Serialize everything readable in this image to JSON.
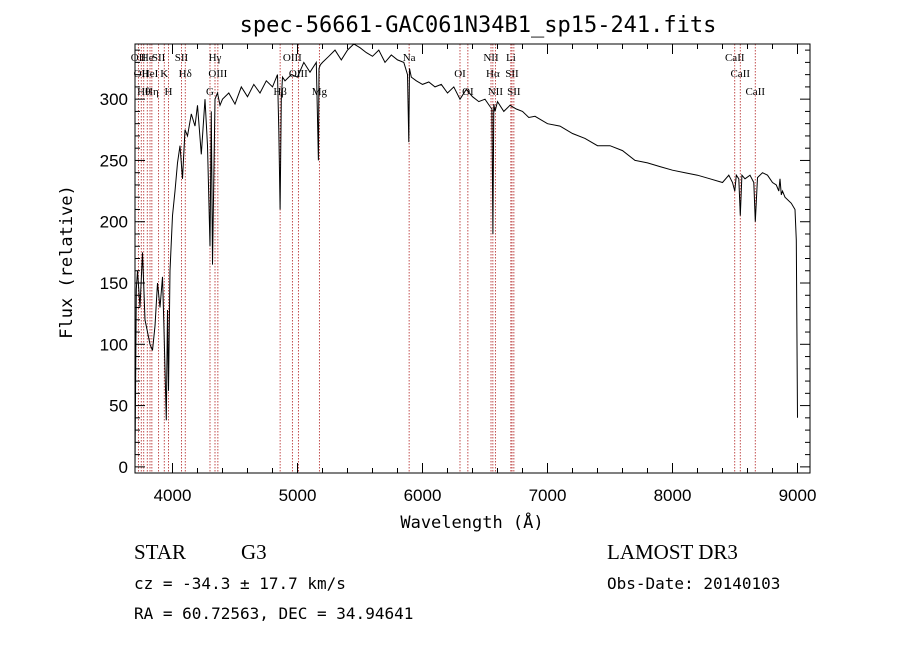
{
  "chart_data": {
    "type": "line",
    "title": "spec-56661-GAC061N34B1_sp15-241.fits",
    "xlabel": "Wavelength (Å)",
    "ylabel": "Flux (relative)",
    "xlim": [
      3700,
      9100
    ],
    "ylim": [
      -5,
      345
    ],
    "xticks": [
      4000,
      5000,
      6000,
      7000,
      8000,
      9000
    ],
    "yticks": [
      0,
      50,
      100,
      150,
      200,
      250,
      300
    ],
    "series": [
      {
        "name": "flux",
        "x": [
          3700,
          3710,
          3720,
          3740,
          3760,
          3780,
          3800,
          3820,
          3840,
          3860,
          3880,
          3900,
          3920,
          3930,
          3950,
          3960,
          3968,
          3980,
          4000,
          4020,
          4040,
          4060,
          4080,
          4100,
          4120,
          4150,
          4180,
          4200,
          4230,
          4260,
          4280,
          4300,
          4310,
          4320,
          4340,
          4360,
          4380,
          4400,
          4450,
          4500,
          4550,
          4600,
          4650,
          4700,
          4750,
          4800,
          4840,
          4850,
          4861,
          4870,
          4880,
          4900,
          4950,
          5000,
          5050,
          5100,
          5150,
          5167,
          5172,
          5183,
          5200,
          5250,
          5300,
          5350,
          5400,
          5450,
          5500,
          5550,
          5600,
          5650,
          5700,
          5750,
          5800,
          5850,
          5880,
          5890,
          5896,
          5910,
          5950,
          6000,
          6050,
          6100,
          6150,
          6200,
          6250,
          6300,
          6350,
          6400,
          6450,
          6500,
          6540,
          6555,
          6563,
          6570,
          6580,
          6600,
          6650,
          6700,
          6750,
          6800,
          6850,
          6900,
          7000,
          7100,
          7200,
          7300,
          7400,
          7500,
          7600,
          7700,
          7800,
          7900,
          8000,
          8100,
          8200,
          8300,
          8400,
          8450,
          8480,
          8498,
          8510,
          8530,
          8542,
          8555,
          8580,
          8620,
          8650,
          8662,
          8680,
          8720,
          8760,
          8800,
          8830,
          8850,
          8860,
          8870,
          8880,
          8900,
          8950,
          8980,
          8990,
          9000
        ],
        "values": [
          0,
          145,
          160,
          130,
          175,
          120,
          110,
          100,
          95,
          115,
          150,
          130,
          155,
          118,
          38,
          128,
          62,
          160,
          205,
          225,
          248,
          262,
          235,
          275,
          270,
          288,
          278,
          295,
          255,
          300,
          262,
          180,
          290,
          165,
          300,
          305,
          295,
          300,
          305,
          296,
          310,
          302,
          312,
          305,
          315,
          310,
          320,
          275,
          210,
          300,
          318,
          315,
          320,
          318,
          330,
          322,
          330,
          250,
          325,
          328,
          330,
          335,
          340,
          332,
          340,
          345,
          342,
          338,
          335,
          340,
          330,
          336,
          332,
          330,
          320,
          265,
          325,
          318,
          315,
          312,
          314,
          310,
          312,
          305,
          310,
          300,
          308,
          302,
          298,
          300,
          294,
          292,
          190,
          296,
          290,
          298,
          290,
          295,
          292,
          290,
          285,
          286,
          280,
          278,
          272,
          268,
          262,
          262,
          258,
          250,
          248,
          245,
          242,
          240,
          238,
          235,
          232,
          238,
          232,
          225,
          238,
          235,
          205,
          238,
          235,
          238,
          232,
          200,
          236,
          240,
          238,
          232,
          230,
          225,
          235,
          222,
          225,
          220,
          215,
          210,
          185,
          40
        ]
      }
    ],
    "line_markers": [
      {
        "wavelength": 3727,
        "label": "OII"
      },
      {
        "wavelength": 3750,
        "label": "OII"
      },
      {
        "wavelength": 3770,
        "label": "Hθ"
      },
      {
        "wavelength": 3798,
        "label": "He"
      },
      {
        "wavelength": 3820,
        "label": "HeI"
      },
      {
        "wavelength": 3835,
        "label": "Hη"
      },
      {
        "wavelength": 3889,
        "label": "SII"
      },
      {
        "wavelength": 3934,
        "label": "K"
      },
      {
        "wavelength": 3968,
        "label": "H"
      },
      {
        "wavelength": 4072,
        "label": "SII"
      },
      {
        "wavelength": 4102,
        "label": "Hδ"
      },
      {
        "wavelength": 4300,
        "label": "G"
      },
      {
        "wavelength": 4340,
        "label": "Hγ"
      },
      {
        "wavelength": 4363,
        "label": "OIII"
      },
      {
        "wavelength": 4861,
        "label": "Hβ"
      },
      {
        "wavelength": 4959,
        "label": "OIII"
      },
      {
        "wavelength": 5007,
        "label": "OIII"
      },
      {
        "wavelength": 5175,
        "label": "Mg"
      },
      {
        "wavelength": 5893,
        "label": "Na"
      },
      {
        "wavelength": 6300,
        "label": "OI"
      },
      {
        "wavelength": 6363,
        "label": "OI"
      },
      {
        "wavelength": 6548,
        "label": "NII"
      },
      {
        "wavelength": 6563,
        "label": "Hα"
      },
      {
        "wavelength": 6583,
        "label": "NII"
      },
      {
        "wavelength": 6707,
        "label": "Li"
      },
      {
        "wavelength": 6716,
        "label": "SII"
      },
      {
        "wavelength": 6731,
        "label": "SII"
      },
      {
        "wavelength": 8498,
        "label": "CaII"
      },
      {
        "wavelength": 8542,
        "label": "CaII"
      },
      {
        "wavelength": 8662,
        "label": "CaII"
      }
    ]
  },
  "info": {
    "object_class": "STAR",
    "subclass": "G3",
    "survey": "LAMOST DR3",
    "cz": "cz = -34.3 ± 17.7 km/s",
    "obs_date": "Obs-Date: 20140103",
    "coords": "RA =  60.72563, DEC =  34.94641"
  }
}
